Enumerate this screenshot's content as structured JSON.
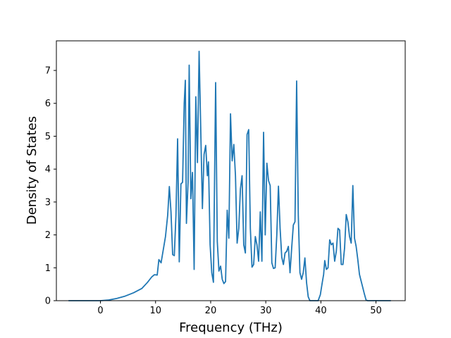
{
  "chart_data": {
    "type": "line",
    "title": "",
    "xlabel": "Frequency (THz)",
    "ylabel": "Density of States",
    "xlim": [
      -8.0,
      55.3
    ],
    "ylim": [
      0,
      7.9
    ],
    "x_ticks": [
      0,
      10,
      20,
      30,
      40,
      50
    ],
    "y_ticks": [
      0,
      1,
      2,
      3,
      4,
      5,
      6,
      7
    ],
    "grid": false,
    "legend": "none",
    "series": [
      {
        "color": "#1f77b4",
        "points": [
          [
            -5.8,
            0.0
          ],
          [
            -3.0,
            0.0
          ],
          [
            0.0,
            0.0
          ],
          [
            1.5,
            0.02
          ],
          [
            3.0,
            0.07
          ],
          [
            4.5,
            0.14
          ],
          [
            6.0,
            0.24
          ],
          [
            7.5,
            0.37
          ],
          [
            8.5,
            0.55
          ],
          [
            9.3,
            0.72
          ],
          [
            9.8,
            0.79
          ],
          [
            10.3,
            0.78
          ],
          [
            10.6,
            1.25
          ],
          [
            11.0,
            1.15
          ],
          [
            11.4,
            1.55
          ],
          [
            11.8,
            1.95
          ],
          [
            12.2,
            2.6
          ],
          [
            12.5,
            3.47
          ],
          [
            12.8,
            2.7
          ],
          [
            13.1,
            1.4
          ],
          [
            13.4,
            1.37
          ],
          [
            13.7,
            2.6
          ],
          [
            14.0,
            4.92
          ],
          [
            14.3,
            1.18
          ],
          [
            14.6,
            3.55
          ],
          [
            14.9,
            3.6
          ],
          [
            15.2,
            6.0
          ],
          [
            15.4,
            6.7
          ],
          [
            15.6,
            2.35
          ],
          [
            15.9,
            3.6
          ],
          [
            16.1,
            7.16
          ],
          [
            16.4,
            3.1
          ],
          [
            16.7,
            3.9
          ],
          [
            17.0,
            0.95
          ],
          [
            17.3,
            6.2
          ],
          [
            17.6,
            4.2
          ],
          [
            17.9,
            7.58
          ],
          [
            18.2,
            5.2
          ],
          [
            18.5,
            2.8
          ],
          [
            18.8,
            4.45
          ],
          [
            19.1,
            4.72
          ],
          [
            19.4,
            3.8
          ],
          [
            19.6,
            4.22
          ],
          [
            19.9,
            1.7
          ],
          [
            20.2,
            0.85
          ],
          [
            20.5,
            0.56
          ],
          [
            20.9,
            6.63
          ],
          [
            21.2,
            1.8
          ],
          [
            21.5,
            0.9
          ],
          [
            21.8,
            1.05
          ],
          [
            22.1,
            0.65
          ],
          [
            22.4,
            0.52
          ],
          [
            22.7,
            0.58
          ],
          [
            23.0,
            2.75
          ],
          [
            23.3,
            1.9
          ],
          [
            23.6,
            5.68
          ],
          [
            23.9,
            4.25
          ],
          [
            24.2,
            4.75
          ],
          [
            24.5,
            3.8
          ],
          [
            24.8,
            1.75
          ],
          [
            25.1,
            2.2
          ],
          [
            25.4,
            3.4
          ],
          [
            25.7,
            3.8
          ],
          [
            26.0,
            1.7
          ],
          [
            26.3,
            1.45
          ],
          [
            26.6,
            5.05
          ],
          [
            26.9,
            5.2
          ],
          [
            27.2,
            2.2
          ],
          [
            27.5,
            1.02
          ],
          [
            27.8,
            1.1
          ],
          [
            28.1,
            1.95
          ],
          [
            28.4,
            1.7
          ],
          [
            28.7,
            1.2
          ],
          [
            29.0,
            2.7
          ],
          [
            29.3,
            1.2
          ],
          [
            29.6,
            5.12
          ],
          [
            29.9,
            2.0
          ],
          [
            30.2,
            4.18
          ],
          [
            30.5,
            3.65
          ],
          [
            30.8,
            3.5
          ],
          [
            31.1,
            1.15
          ],
          [
            31.4,
            0.98
          ],
          [
            31.7,
            1.0
          ],
          [
            32.0,
            2.0
          ],
          [
            32.3,
            3.48
          ],
          [
            32.6,
            2.2
          ],
          [
            32.9,
            1.32
          ],
          [
            33.2,
            1.1
          ],
          [
            33.5,
            1.45
          ],
          [
            33.8,
            1.5
          ],
          [
            34.1,
            1.65
          ],
          [
            34.4,
            0.85
          ],
          [
            34.7,
            1.6
          ],
          [
            35.0,
            2.3
          ],
          [
            35.3,
            2.4
          ],
          [
            35.6,
            6.68
          ],
          [
            35.9,
            2.6
          ],
          [
            36.2,
            0.85
          ],
          [
            36.5,
            0.65
          ],
          [
            36.8,
            0.85
          ],
          [
            37.1,
            1.3
          ],
          [
            37.4,
            0.55
          ],
          [
            37.7,
            0.12
          ],
          [
            38.0,
            0.0
          ],
          [
            38.5,
            0.0
          ],
          [
            39.5,
            0.0
          ],
          [
            39.9,
            0.18
          ],
          [
            40.2,
            0.5
          ],
          [
            40.5,
            0.8
          ],
          [
            40.7,
            1.22
          ],
          [
            41.0,
            0.95
          ],
          [
            41.3,
            1.0
          ],
          [
            41.6,
            1.85
          ],
          [
            41.9,
            1.7
          ],
          [
            42.2,
            1.75
          ],
          [
            42.5,
            1.2
          ],
          [
            42.8,
            1.5
          ],
          [
            43.1,
            2.2
          ],
          [
            43.4,
            2.15
          ],
          [
            43.7,
            1.1
          ],
          [
            44.0,
            1.1
          ],
          [
            44.3,
            1.6
          ],
          [
            44.6,
            2.62
          ],
          [
            44.9,
            2.4
          ],
          [
            45.2,
            1.95
          ],
          [
            45.5,
            1.75
          ],
          [
            45.8,
            3.5
          ],
          [
            46.1,
            1.9
          ],
          [
            46.4,
            1.65
          ],
          [
            46.7,
            1.25
          ],
          [
            47.0,
            0.8
          ],
          [
            47.3,
            0.6
          ],
          [
            47.6,
            0.4
          ],
          [
            47.9,
            0.2
          ],
          [
            48.2,
            0.02
          ],
          [
            48.5,
            0.0
          ],
          [
            50.0,
            0.0
          ],
          [
            52.7,
            0.0
          ]
        ]
      }
    ]
  }
}
